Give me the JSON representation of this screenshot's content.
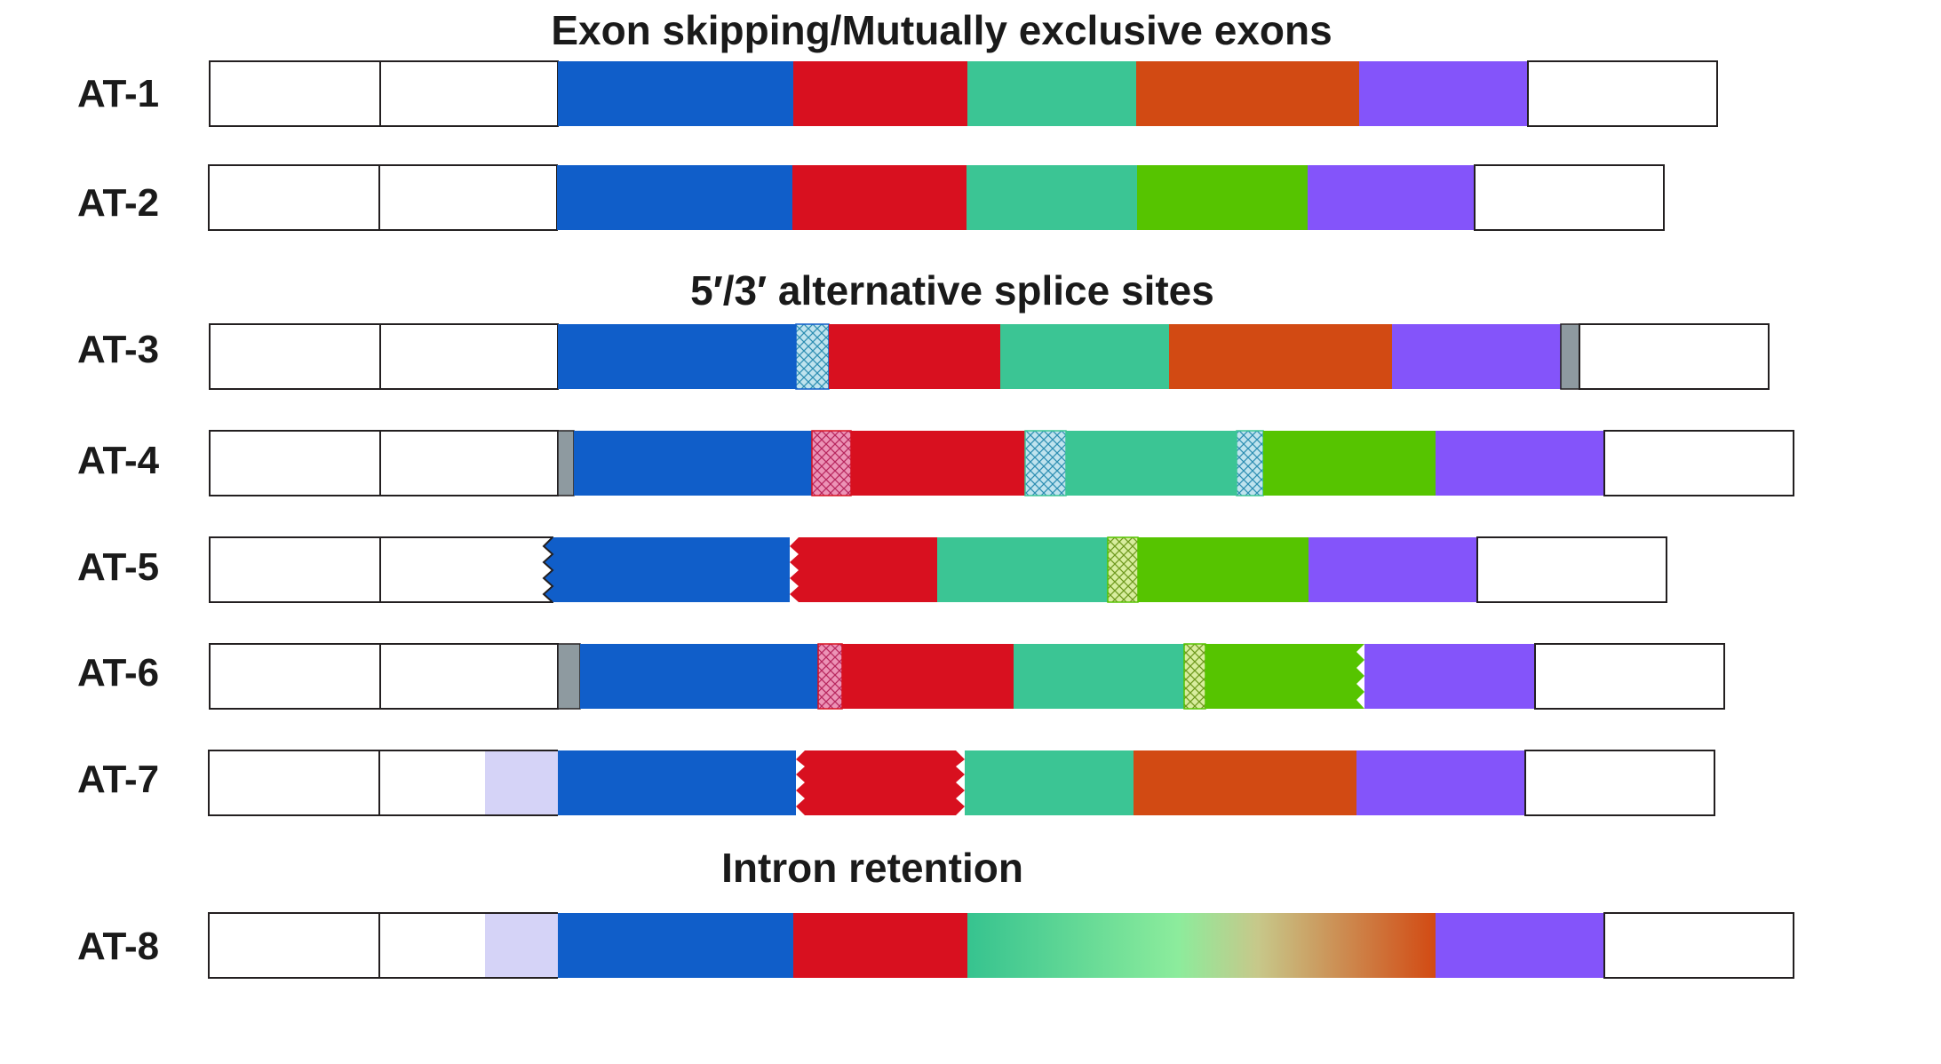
{
  "colors": {
    "utr": "#ffffff",
    "outline": "#231f20",
    "blue": "#105ec9",
    "red": "#d8101f",
    "teal": "#3bc594",
    "orange": "#d24a13",
    "green": "#56c400",
    "purple": "#8454fa",
    "lavender": "#d5d3f7",
    "gray": "#8e9aa0",
    "hatch_blue": "#bfe3ee",
    "hatch_pink": "#ec93b6",
    "hatch_lime": "#d8ed9e",
    "light_green": "#8cec9c"
  },
  "sections": [
    {
      "name": "exon-skipping",
      "title": "Exon skipping/Mutually exclusive exons"
    },
    {
      "name": "alt-splice-sites",
      "title": "5′/3′ alternative splice sites"
    },
    {
      "name": "intron-retention",
      "title": "Intron retention"
    }
  ],
  "isoforms": [
    {
      "label": "AT-1"
    },
    {
      "label": "AT-2"
    },
    {
      "label": "AT-3"
    },
    {
      "label": "AT-4"
    },
    {
      "label": "AT-5"
    },
    {
      "label": "AT-6"
    },
    {
      "label": "AT-7"
    },
    {
      "label": "AT-8"
    }
  ]
}
